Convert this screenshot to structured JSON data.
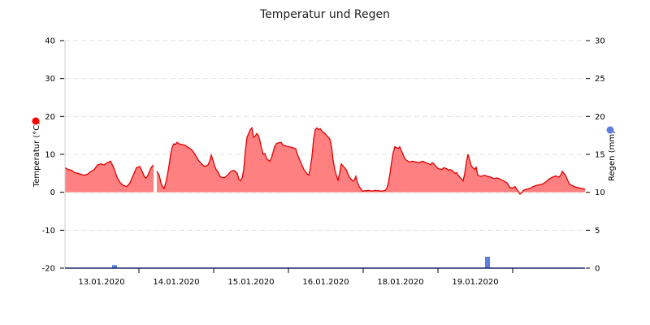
{
  "chart_data": {
    "type": "area",
    "title": "Temperatur und Regen",
    "y_left": {
      "label": "Temperatur (°C)",
      "ticks": [
        40,
        30,
        20,
        10,
        0,
        -10,
        -20
      ],
      "range": [
        -20,
        40
      ],
      "marker_color": "#ff0000"
    },
    "y_right": {
      "label": "Regen (mm)",
      "ticks": [
        30,
        25,
        20,
        15,
        10,
        5,
        0
      ],
      "range": [
        0,
        30
      ],
      "marker_color": "#5b7fe0"
    },
    "x_labels": [
      "13.01.2020",
      "14.01.2020",
      "15.01.2020",
      "16.01.2020",
      "18.01.2020",
      "19.01.2020"
    ],
    "grid": true,
    "colors": {
      "temp_line": "#e00000",
      "temp_fill": "#ff8080",
      "rain": "#5b7fe0",
      "axis": "#1a2a6c"
    },
    "series": [
      {
        "name": "Temperatur",
        "axis": "left",
        "segments": [
          [
            [
              0,
              6.5
            ],
            [
              4,
              6
            ],
            [
              8,
              5.8
            ],
            [
              12,
              5.2
            ],
            [
              16,
              5
            ],
            [
              20,
              4.7
            ],
            [
              24,
              4.5
            ],
            [
              28,
              4.8
            ],
            [
              32,
              5.5
            ],
            [
              36,
              6
            ],
            [
              40,
              7.2
            ],
            [
              44,
              7.5
            ],
            [
              48,
              7.2
            ],
            [
              52,
              7.8
            ],
            [
              56,
              8.2
            ],
            [
              60,
              6.5
            ],
            [
              64,
              4
            ],
            [
              68,
              2.5
            ],
            [
              72,
              1.8
            ],
            [
              76,
              1.5
            ],
            [
              80,
              2.5
            ],
            [
              84,
              4.5
            ],
            [
              88,
              6.5
            ],
            [
              92,
              6.8
            ],
            [
              96,
              5
            ],
            [
              98,
              4
            ],
            [
              100,
              3.8
            ],
            [
              102,
              4.5
            ],
            [
              104,
              5.5
            ],
            [
              106,
              6.5
            ],
            [
              108,
              7
            ],
            [
              109,
              7.2
            ]
          ],
          [
            [
              113,
              5.5
            ],
            [
              116,
              4.5
            ],
            [
              118,
              2.5
            ],
            [
              120,
              1.5
            ],
            [
              122,
              1
            ],
            [
              124,
              2.5
            ],
            [
              126,
              4.5
            ],
            [
              128,
              7
            ],
            [
              130,
              10
            ],
            [
              132,
              12
            ],
            [
              134,
              12.8
            ],
            [
              136,
              12.6
            ],
            [
              138,
              13.2
            ],
            [
              140,
              12.8
            ],
            [
              144,
              12.6
            ],
            [
              148,
              12.4
            ],
            [
              152,
              11.8
            ],
            [
              156,
              11.2
            ],
            [
              160,
              10
            ],
            [
              164,
              8.5
            ],
            [
              168,
              7.5
            ],
            [
              172,
              6.8
            ],
            [
              176,
              7.2
            ],
            [
              178,
              8.2
            ],
            [
              180,
              9.8
            ],
            [
              182,
              8.5
            ],
            [
              184,
              7
            ],
            [
              186,
              6
            ],
            [
              188,
              5.5
            ],
            [
              190,
              4.5
            ],
            [
              192,
              4
            ],
            [
              196,
              3.8
            ],
            [
              200,
              4.5
            ],
            [
              204,
              5.5
            ],
            [
              208,
              5.8
            ],
            [
              212,
              5
            ],
            [
              214,
              3.5
            ],
            [
              216,
              3
            ],
            [
              218,
              3.8
            ],
            [
              220,
              6
            ],
            [
              222,
              11
            ],
            [
              224,
              14.5
            ],
            [
              226,
              15.5
            ],
            [
              228,
              16.5
            ],
            [
              230,
              17
            ],
            [
              232,
              14.5
            ],
            [
              234,
              14.8
            ],
            [
              236,
              15.5
            ],
            [
              238,
              15
            ],
            [
              240,
              13.5
            ],
            [
              242,
              11.5
            ],
            [
              244,
              10
            ],
            [
              246,
              10.2
            ],
            [
              248,
              9
            ],
            [
              250,
              8.5
            ],
            [
              252,
              8.2
            ],
            [
              254,
              9
            ],
            [
              256,
              10.5
            ],
            [
              258,
              12
            ],
            [
              260,
              12.8
            ],
            [
              262,
              13
            ],
            [
              266,
              13.2
            ],
            [
              268,
              12.5
            ],
            [
              272,
              12.2
            ],
            [
              276,
              12
            ],
            [
              280,
              11.8
            ],
            [
              284,
              11.5
            ],
            [
              286,
              10
            ],
            [
              288,
              9
            ],
            [
              290,
              8
            ],
            [
              292,
              7
            ],
            [
              294,
              6
            ],
            [
              296,
              5.5
            ],
            [
              298,
              4.8
            ],
            [
              300,
              4.5
            ],
            [
              302,
              6.5
            ],
            [
              304,
              9.5
            ],
            [
              306,
              14
            ],
            [
              308,
              16.5
            ],
            [
              310,
              17
            ],
            [
              312,
              16.5
            ],
            [
              314,
              16.8
            ],
            [
              316,
              16.2
            ],
            [
              318,
              15.8
            ],
            [
              320,
              15.5
            ],
            [
              322,
              15
            ],
            [
              324,
              14.5
            ],
            [
              326,
              14
            ],
            [
              328,
              12
            ],
            [
              330,
              8.5
            ],
            [
              332,
              6
            ],
            [
              334,
              4.5
            ],
            [
              336,
              3.2
            ],
            [
              338,
              5
            ],
            [
              340,
              7.5
            ],
            [
              342,
              7
            ],
            [
              344,
              6.5
            ],
            [
              346,
              6
            ],
            [
              348,
              5
            ],
            [
              350,
              4
            ],
            [
              352,
              3.5
            ],
            [
              354,
              3
            ],
            [
              356,
              3.2
            ],
            [
              358,
              4.2
            ],
            [
              360,
              2.5
            ],
            [
              362,
              1.5
            ],
            [
              364,
              1
            ],
            [
              366,
              0.3
            ],
            [
              370,
              0.4
            ],
            [
              374,
              0.5
            ],
            [
              378,
              0.3
            ],
            [
              382,
              0.5
            ],
            [
              386,
              0.4
            ],
            [
              390,
              0.3
            ],
            [
              394,
              0.5
            ],
            [
              396,
              1
            ],
            [
              398,
              2.5
            ],
            [
              400,
              5
            ],
            [
              402,
              8
            ],
            [
              404,
              10.5
            ],
            [
              406,
              12
            ],
            [
              408,
              11.8
            ],
            [
              410,
              11.5
            ],
            [
              412,
              12
            ],
            [
              414,
              11
            ],
            [
              416,
              10
            ],
            [
              418,
              9
            ],
            [
              420,
              8.5
            ],
            [
              424,
              8
            ],
            [
              428,
              8.2
            ],
            [
              432,
              8
            ],
            [
              436,
              7.8
            ],
            [
              440,
              8.2
            ],
            [
              444,
              7.8
            ],
            [
              448,
              7.5
            ],
            [
              450,
              7.2
            ],
            [
              452,
              7.8
            ],
            [
              454,
              7.5
            ],
            [
              456,
              7
            ],
            [
              458,
              6.5
            ],
            [
              460,
              6.2
            ],
            [
              464,
              6
            ],
            [
              466,
              6.5
            ],
            [
              470,
              6.2
            ],
            [
              472,
              5.8
            ],
            [
              474,
              6
            ],
            [
              478,
              5.5
            ],
            [
              480,
              5
            ],
            [
              482,
              5.2
            ],
            [
              484,
              4.5
            ],
            [
              486,
              4
            ],
            [
              488,
              3.5
            ],
            [
              490,
              3
            ],
            [
              492,
              5
            ],
            [
              494,
              8
            ],
            [
              496,
              10
            ],
            [
              498,
              8.5
            ],
            [
              500,
              7
            ],
            [
              502,
              6.5
            ],
            [
              504,
              6
            ],
            [
              506,
              6.6
            ],
            [
              508,
              4.5
            ],
            [
              512,
              4.2
            ],
            [
              516,
              4.5
            ],
            [
              520,
              4.2
            ],
            [
              524,
              4
            ],
            [
              528,
              3.6
            ],
            [
              532,
              3.8
            ],
            [
              536,
              3.4
            ],
            [
              540,
              3
            ],
            [
              544,
              2.5
            ],
            [
              546,
              1.8
            ],
            [
              548,
              1.2
            ],
            [
              552,
              1.2
            ],
            [
              554,
              1.5
            ],
            [
              556,
              0.8
            ],
            [
              558,
              0.2
            ],
            [
              560,
              -0.5
            ],
            [
              562,
              -0.2
            ],
            [
              564,
              0.5
            ],
            [
              568,
              0.8
            ],
            [
              572,
              1
            ],
            [
              576,
              1.5
            ],
            [
              580,
              1.8
            ],
            [
              584,
              2
            ],
            [
              588,
              2.2
            ],
            [
              592,
              2.8
            ],
            [
              596,
              3.5
            ],
            [
              600,
              4
            ],
            [
              604,
              4.3
            ],
            [
              608,
              4
            ],
            [
              610,
              4.5
            ],
            [
              612,
              5.5
            ],
            [
              614,
              5
            ],
            [
              616,
              4.5
            ],
            [
              618,
              3.5
            ],
            [
              620,
              2.5
            ],
            [
              622,
              2
            ],
            [
              624,
              1.8
            ],
            [
              628,
              1.4
            ],
            [
              632,
              1.2
            ],
            [
              636,
              1
            ],
            [
              640,
              0.8
            ]
          ]
        ]
      },
      {
        "name": "Regen",
        "axis": "right",
        "type": "bar",
        "points": [
          [
            61,
            0.4
          ],
          [
            520,
            1.5
          ]
        ]
      }
    ]
  }
}
